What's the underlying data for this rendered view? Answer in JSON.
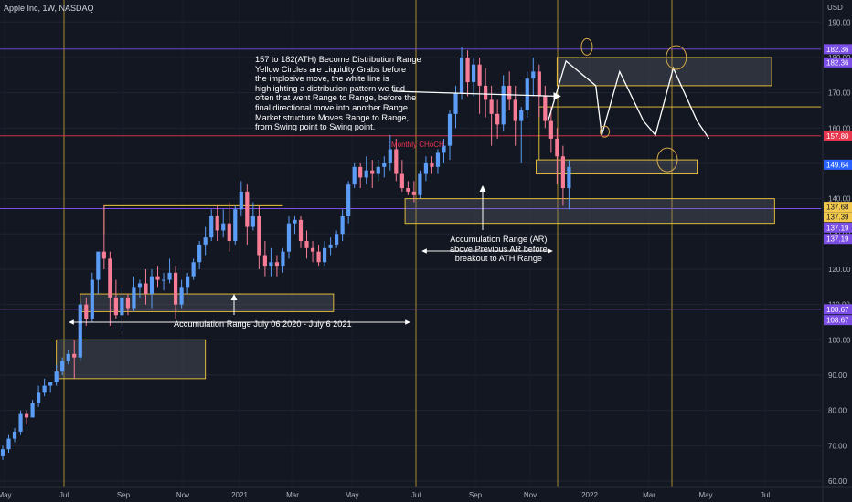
{
  "header": {
    "symbol_line": "Apple Inc, 1W, NASDAQ",
    "currency": "USD"
  },
  "chart_data": {
    "type": "candlestick",
    "title": "Apple Inc, 1W, NASDAQ",
    "ylim": [
      58,
      196
    ],
    "y_ticks": [
      60,
      70,
      80,
      90,
      100,
      110,
      120,
      130,
      140,
      150,
      160,
      170,
      180,
      190
    ],
    "x_ticks": [
      "May",
      "Jul",
      "Sep",
      "Nov",
      "2021",
      "Mar",
      "May",
      "Jul",
      "Sep",
      "Nov",
      "2022",
      "Mar",
      "May",
      "Jul"
    ],
    "colors": {
      "up": "#5b9cf6",
      "down": "#f77c95",
      "zone": "#f0c93c",
      "circle": "#d6a94a",
      "hline_purple": "#7b4ee6",
      "hline_red": "#e8364f",
      "vline": "#b8962e",
      "background": "#131722"
    },
    "candles": [
      [
        67,
        70,
        66,
        69
      ],
      [
        69,
        73,
        68,
        72
      ],
      [
        72,
        75,
        71,
        74
      ],
      [
        74,
        80,
        73,
        79
      ],
      [
        79,
        80,
        76,
        78
      ],
      [
        78,
        83,
        78,
        82
      ],
      [
        82,
        87,
        81,
        85
      ],
      [
        85,
        89,
        84,
        87
      ],
      [
        87,
        88,
        85,
        88
      ],
      [
        88,
        93,
        87,
        91
      ],
      [
        91,
        95,
        90,
        94
      ],
      [
        94,
        97,
        93,
        96
      ],
      [
        96,
        100,
        89,
        95
      ],
      [
        95,
        111,
        94,
        110
      ],
      [
        110,
        112,
        104,
        106
      ],
      [
        106,
        119,
        105,
        117
      ],
      [
        117,
        125,
        113,
        125
      ],
      [
        125,
        138,
        120,
        123
      ],
      [
        123,
        125,
        104,
        112
      ],
      [
        112,
        117,
        106,
        107
      ],
      [
        107,
        115,
        103,
        112
      ],
      [
        112,
        113,
        107,
        109
      ],
      [
        109,
        118,
        108,
        115
      ],
      [
        115,
        117,
        112,
        116
      ],
      [
        116,
        120,
        110,
        113
      ],
      [
        113,
        120,
        109,
        118
      ],
      [
        118,
        121,
        115,
        117
      ],
      [
        117,
        119,
        114,
        117
      ],
      [
        117,
        123,
        116,
        119
      ],
      [
        119,
        121,
        106,
        110
      ],
      [
        110,
        117,
        109,
        115
      ],
      [
        115,
        119,
        113,
        118
      ],
      [
        118,
        123,
        117,
        122
      ],
      [
        122,
        128,
        120,
        127
      ],
      [
        127,
        132,
        124,
        129
      ],
      [
        129,
        137,
        128,
        135
      ],
      [
        135,
        138,
        128,
        131
      ],
      [
        131,
        137,
        129,
        133
      ],
      [
        133,
        139,
        125,
        128
      ],
      [
        128,
        138,
        127,
        137
      ],
      [
        137,
        145,
        135,
        142
      ],
      [
        142,
        144,
        127,
        132
      ],
      [
        132,
        139,
        131,
        135
      ],
      [
        135,
        138,
        120,
        124
      ],
      [
        124,
        128,
        118,
        121
      ],
      [
        121,
        126,
        118,
        122
      ],
      [
        122,
        124,
        118,
        121
      ],
      [
        121,
        126,
        119,
        125
      ],
      [
        125,
        135,
        123,
        133
      ],
      [
        133,
        135,
        130,
        134
      ],
      [
        134,
        135,
        126,
        128
      ],
      [
        128,
        131,
        123,
        126
      ],
      [
        126,
        128,
        122,
        125
      ],
      [
        125,
        127,
        121,
        122
      ],
      [
        122,
        128,
        121,
        126
      ],
      [
        126,
        129,
        124,
        127
      ],
      [
        127,
        131,
        126,
        130
      ],
      [
        130,
        137,
        128,
        135
      ],
      [
        135,
        145,
        133,
        144
      ],
      [
        144,
        150,
        143,
        149
      ],
      [
        149,
        150,
        143,
        146
      ],
      [
        146,
        152,
        144,
        148
      ],
      [
        148,
        151,
        143,
        147
      ],
      [
        147,
        151,
        145,
        149
      ],
      [
        149,
        152,
        146,
        150
      ],
      [
        150,
        158,
        148,
        154
      ],
      [
        154,
        157,
        145,
        147
      ],
      [
        147,
        151,
        142,
        143
      ],
      [
        143,
        145,
        141,
        142
      ],
      [
        142,
        145,
        139,
        141
      ],
      [
        141,
        148,
        140,
        147
      ],
      [
        147,
        152,
        145,
        150
      ],
      [
        150,
        152,
        147,
        149
      ],
      [
        149,
        154,
        147,
        153
      ],
      [
        153,
        157,
        150,
        155
      ],
      [
        155,
        165,
        151,
        164
      ],
      [
        164,
        172,
        160,
        170
      ],
      [
        170,
        183,
        168,
        180
      ],
      [
        180,
        182,
        169,
        173
      ],
      [
        173,
        180,
        169,
        178
      ],
      [
        178,
        180,
        164,
        172
      ],
      [
        172,
        177,
        163,
        168
      ],
      [
        168,
        172,
        155,
        164
      ],
      [
        164,
        168,
        157,
        161
      ],
      [
        161,
        175,
        159,
        172
      ],
      [
        172,
        176,
        165,
        168
      ],
      [
        168,
        172,
        155,
        162
      ],
      [
        162,
        166,
        150,
        165
      ],
      [
        165,
        176,
        163,
        174
      ],
      [
        174,
        180,
        169,
        176
      ],
      [
        176,
        178,
        163,
        169
      ],
      [
        169,
        172,
        160,
        162
      ],
      [
        162,
        166,
        153,
        157
      ],
      [
        157,
        160,
        144,
        152
      ],
      [
        152,
        155,
        138,
        143
      ],
      [
        143,
        151,
        137,
        149
      ]
    ],
    "horizontal_levels": [
      {
        "price": 182.36,
        "color": "hline_purple"
      },
      {
        "price": 157.8,
        "color": "hline_red"
      },
      {
        "price": 137.19,
        "color": "hline_purple"
      },
      {
        "price": 108.67,
        "color": "hline_purple"
      }
    ],
    "price_tags": [
      {
        "label": "182.36",
        "price": 182.36,
        "bg": "#7b4ee6"
      },
      {
        "label": "182.36",
        "price": 178.6,
        "bg": "#7b4ee6"
      },
      {
        "label": "157.80",
        "price": 157.8,
        "bg": "#e8364f"
      },
      {
        "label": "149.64",
        "price": 149.64,
        "bg": "#2962ff"
      },
      {
        "label": "137.68",
        "price": 137.68,
        "bg": "#f2c94c"
      },
      {
        "label": "137.39",
        "price": 134.8,
        "bg": "#f2c94c"
      },
      {
        "label": "137.19",
        "price": 131.8,
        "bg": "#7b4ee6"
      },
      {
        "label": "137.19",
        "price": 128.6,
        "bg": "#7b4ee6"
      },
      {
        "label": "108.67",
        "price": 108.67,
        "bg": "#7b4ee6"
      },
      {
        "label": "108.67",
        "price": 105.6,
        "bg": "#7b4ee6"
      }
    ]
  },
  "annotations": {
    "distribution_note": [
      "157 to 182(ATH) Become Distribution Range",
      "Yellow Circles are Liquidity Grabs before",
      "the implosive move, the white line is",
      "highlighting a distribution pattern we find",
      "often that went Range to Range, before the",
      "final directional move into another Range.",
      "Market structure Moves Range to Range,",
      "from Swing point to Swing point."
    ],
    "monthly_choch": "Monthly CHoCH",
    "accumulation_range_ar": [
      "Accumulation Range (AR)",
      "above Previous AR before",
      "breakout to ATH Range"
    ],
    "accumulation_range_dates": "Accumulation Range July 06 2020 - July 6 2021"
  }
}
